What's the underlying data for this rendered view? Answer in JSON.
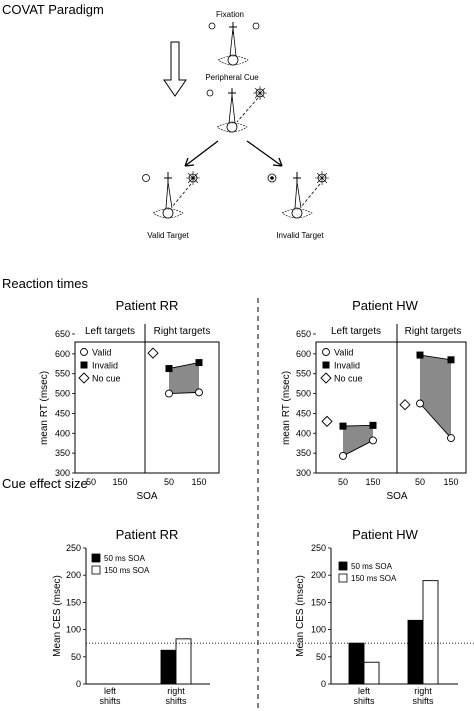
{
  "paradigm": {
    "title": "COVAT Paradigm",
    "fixation": "Fixation",
    "peripheral_cue": "Peripheral Cue",
    "valid_target": "Valid Target",
    "invalid_target": "Invalid Target"
  },
  "sections": {
    "reaction_times": "Reaction times",
    "cue_effect_size": "Cue effect size"
  },
  "colors": {
    "shade": "#8a8a8a",
    "line": "#000000"
  },
  "chart_data": [
    {
      "type": "line",
      "panel": "rt-rr",
      "title": "Patient RR",
      "ylabel": "mean RT (msec)",
      "xlabel": "SOA",
      "ylim": [
        300,
        650
      ],
      "yticks": [
        300,
        350,
        400,
        450,
        500,
        550,
        600,
        650
      ],
      "groups": [
        "Left targets",
        "Right targets"
      ],
      "group_ticks": [
        [
          "50",
          "150"
        ],
        [
          "50",
          "150"
        ]
      ],
      "legend": [
        "Valid",
        "Invalid",
        "No cue"
      ],
      "series": [
        {
          "name": "Valid",
          "group": "Right targets",
          "values": [
            500,
            503
          ]
        },
        {
          "name": "Invalid",
          "group": "Right targets",
          "values": [
            563,
            578
          ]
        },
        {
          "name": "No cue",
          "group": "Right targets",
          "values": [
            602
          ]
        }
      ]
    },
    {
      "type": "line",
      "panel": "rt-hw",
      "title": "Patient HW",
      "ylabel": "mean RT (msec)",
      "xlabel": "SOA",
      "ylim": [
        300,
        650
      ],
      "yticks": [
        300,
        350,
        400,
        450,
        500,
        550,
        600,
        650
      ],
      "groups": [
        "Left targets",
        "Right targets"
      ],
      "group_ticks": [
        [
          "50",
          "150"
        ],
        [
          "50",
          "150"
        ]
      ],
      "legend": [
        "Valid",
        "Invalid",
        "No cue"
      ],
      "series": [
        {
          "name": "Valid",
          "group": "Left targets",
          "values": [
            343,
            382
          ]
        },
        {
          "name": "Invalid",
          "group": "Left targets",
          "values": [
            418,
            420
          ]
        },
        {
          "name": "No cue",
          "group": "Left targets",
          "values": [
            430
          ]
        },
        {
          "name": "Valid",
          "group": "Right targets",
          "values": [
            475,
            388
          ]
        },
        {
          "name": "Invalid",
          "group": "Right targets",
          "values": [
            597,
            585
          ]
        },
        {
          "name": "No cue",
          "group": "Right targets",
          "values": [
            472
          ]
        }
      ]
    },
    {
      "type": "bar",
      "panel": "ces-rr",
      "title": "Patient RR",
      "ylabel": "Mean CES (msec)",
      "ylim": [
        0,
        250
      ],
      "yticks": [
        0,
        50,
        100,
        150,
        200,
        250
      ],
      "categories": [
        "left\nshifts",
        "right\nshifts"
      ],
      "reference_line": 75,
      "series": [
        {
          "name": "50 ms SOA",
          "values": [
            0,
            62
          ]
        },
        {
          "name": "150 ms SOA",
          "values": [
            0,
            83
          ]
        }
      ]
    },
    {
      "type": "bar",
      "panel": "ces-hw",
      "title": "Patient HW",
      "ylabel": "Mean CES (msec)",
      "ylim": [
        0,
        250
      ],
      "yticks": [
        0,
        50,
        100,
        150,
        200,
        250
      ],
      "categories": [
        "left\nshifts",
        "right\nshifts"
      ],
      "reference_line": 75,
      "series": [
        {
          "name": "50 ms SOA",
          "values": [
            75,
            0
          ]
        },
        {
          "name": "150 ms SOA",
          "values": [
            40,
            0
          ]
        }
      ],
      "series_right": [
        {
          "name": "50 ms SOA",
          "value": 117
        },
        {
          "name": "150 ms SOA",
          "value": 190
        }
      ]
    }
  ]
}
